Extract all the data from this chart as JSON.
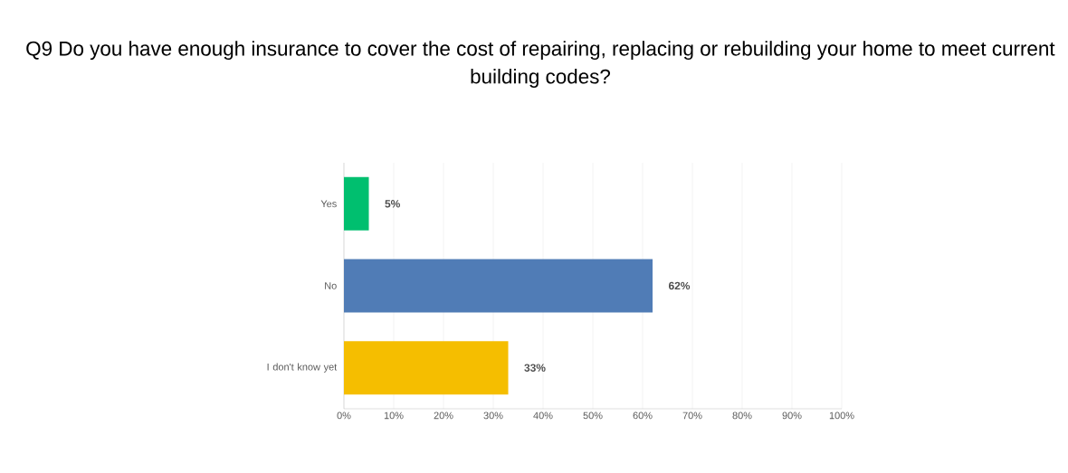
{
  "chart_data": {
    "type": "bar",
    "orientation": "horizontal",
    "title": "Q9 Do you have enough insurance to cover the cost of repairing, replacing or rebuilding your home to meet current building codes?",
    "categories": [
      "Yes",
      "No",
      "I don't know yet"
    ],
    "values": [
      5,
      62,
      33
    ],
    "colors": [
      "#00bf6f",
      "#507cb6",
      "#f5be00"
    ],
    "value_labels": [
      "5%",
      "62%",
      "33%"
    ],
    "xlim": [
      0,
      100
    ],
    "xticks": [
      {
        "value": 0,
        "label": "0%"
      },
      {
        "value": 10,
        "label": "10%"
      },
      {
        "value": 20,
        "label": "20%"
      },
      {
        "value": 30,
        "label": "30%"
      },
      {
        "value": 40,
        "label": "40%"
      },
      {
        "value": 50,
        "label": "50%"
      },
      {
        "value": 60,
        "label": "60%"
      },
      {
        "value": 70,
        "label": "70%"
      },
      {
        "value": 80,
        "label": "80%"
      },
      {
        "value": 90,
        "label": "90%"
      },
      {
        "value": 100,
        "label": "100%"
      }
    ],
    "grid": "x"
  }
}
